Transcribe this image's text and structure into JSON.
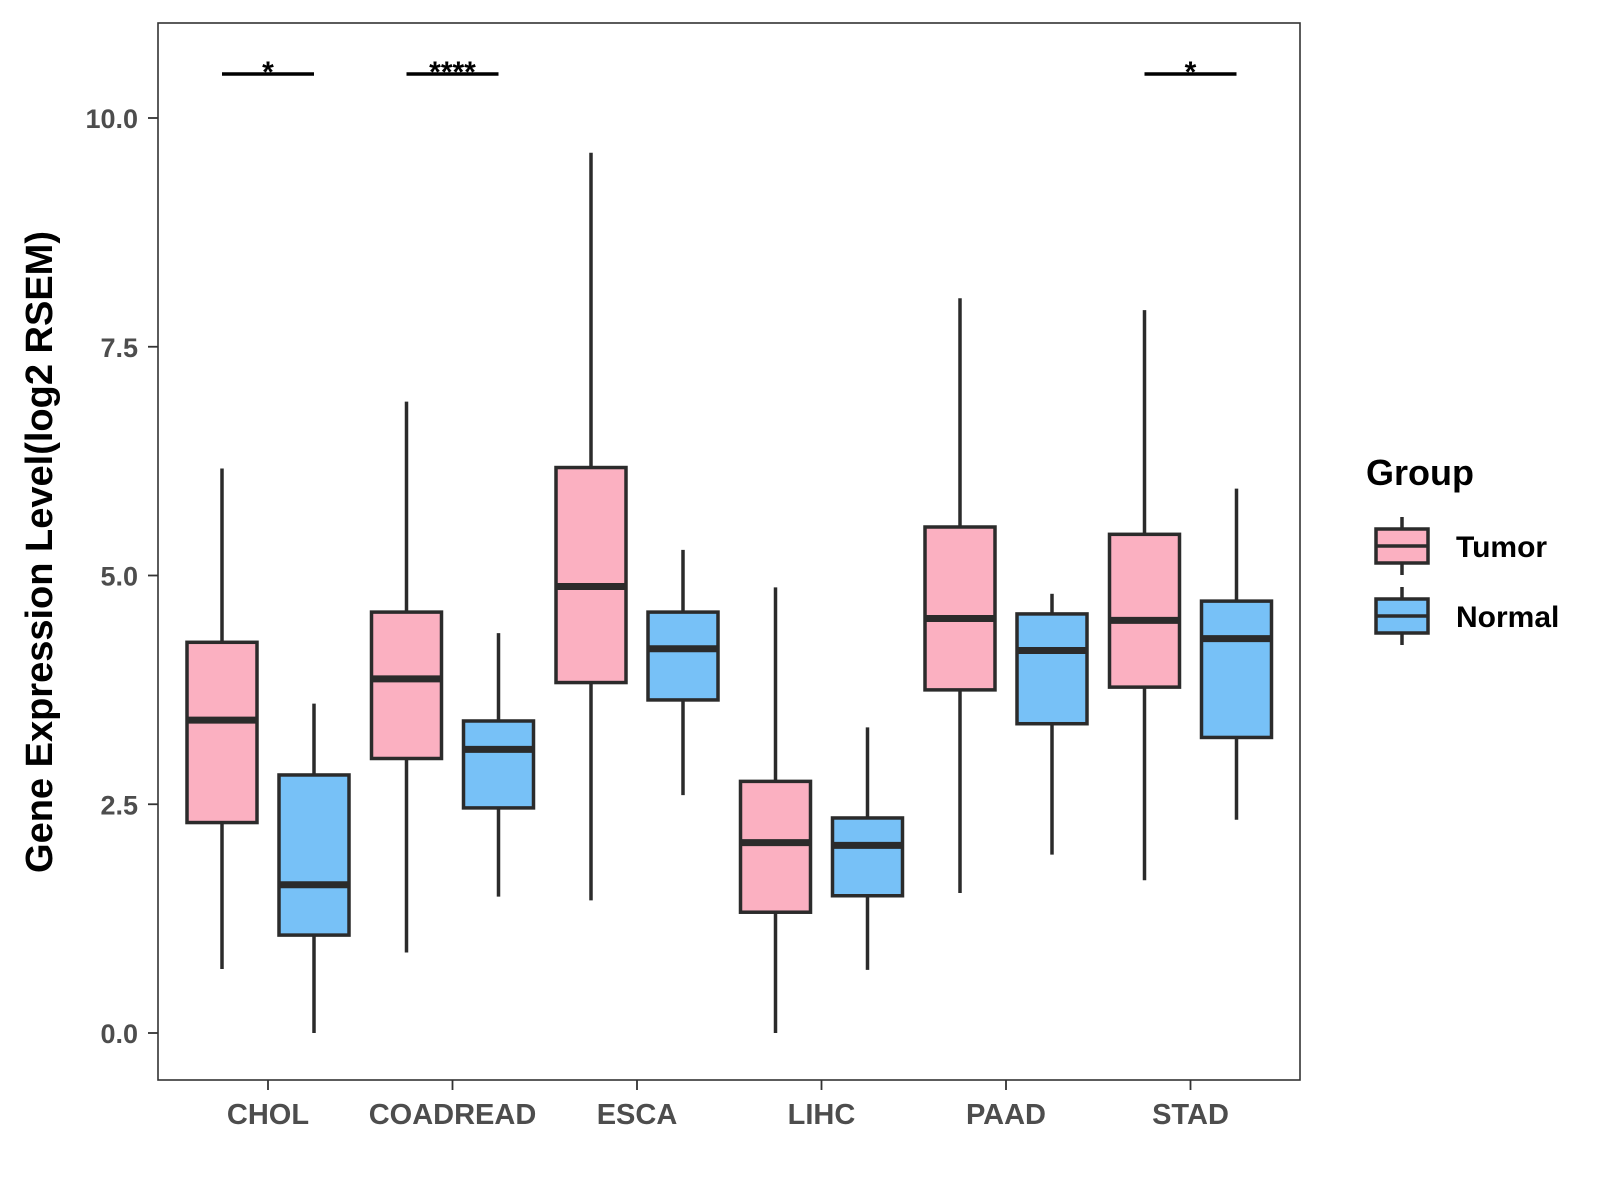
{
  "chart_data": {
    "type": "box",
    "title": "",
    "xlabel": "",
    "ylabel": "Gene Expression Level(log2 RSEM)",
    "ylim": [
      -0.5,
      10.5
    ],
    "yticks": [
      0.0,
      2.5,
      5.0,
      7.5,
      10.0
    ],
    "ytick_labels": [
      "0.0",
      "2.5",
      "5.0",
      "7.5",
      "10.0"
    ],
    "grid": false,
    "legend_position": "right",
    "categories": [
      "CHOL",
      "COADREAD",
      "ESCA",
      "LIHC",
      "PAAD",
      "STAD"
    ],
    "legend": {
      "title": "Group",
      "entries": [
        "Tumor",
        "Normal"
      ]
    },
    "series": [
      {
        "name": "Tumor",
        "color": "#fbb0c1",
        "boxes": [
          {
            "min": 0.7,
            "q1": 2.3,
            "median": 3.42,
            "q3": 4.27,
            "max": 6.17
          },
          {
            "min": 0.88,
            "q1": 3.0,
            "median": 3.87,
            "q3": 4.6,
            "max": 6.9
          },
          {
            "min": 1.45,
            "q1": 3.83,
            "median": 4.88,
            "q3": 6.18,
            "max": 9.62
          },
          {
            "min": 0.0,
            "q1": 1.32,
            "median": 2.08,
            "q3": 2.75,
            "max": 4.87
          },
          {
            "min": 1.53,
            "q1": 3.75,
            "median": 4.53,
            "q3": 5.53,
            "max": 8.03
          },
          {
            "min": 1.67,
            "q1": 3.78,
            "median": 4.51,
            "q3": 5.45,
            "max": 7.9
          }
        ]
      },
      {
        "name": "Normal",
        "color": "#77c1f7",
        "boxes": [
          {
            "min": 0.0,
            "q1": 1.07,
            "median": 1.62,
            "q3": 2.82,
            "max": 3.6
          },
          {
            "min": 1.49,
            "q1": 2.46,
            "median": 3.1,
            "q3": 3.41,
            "max": 4.37
          },
          {
            "min": 2.6,
            "q1": 3.64,
            "median": 4.2,
            "q3": 4.6,
            "max": 5.28
          },
          {
            "min": 0.69,
            "q1": 1.5,
            "median": 2.05,
            "q3": 2.35,
            "max": 3.34
          },
          {
            "min": 1.95,
            "q1": 3.38,
            "median": 4.18,
            "q3": 4.58,
            "max": 4.8
          },
          {
            "min": 2.33,
            "q1": 3.23,
            "median": 4.31,
            "q3": 4.72,
            "max": 5.95
          }
        ]
      }
    ],
    "significance": [
      {
        "category": "CHOL",
        "label": "*"
      },
      {
        "category": "COADREAD",
        "label": "****"
      },
      {
        "category": "STAD",
        "label": "*"
      }
    ]
  }
}
